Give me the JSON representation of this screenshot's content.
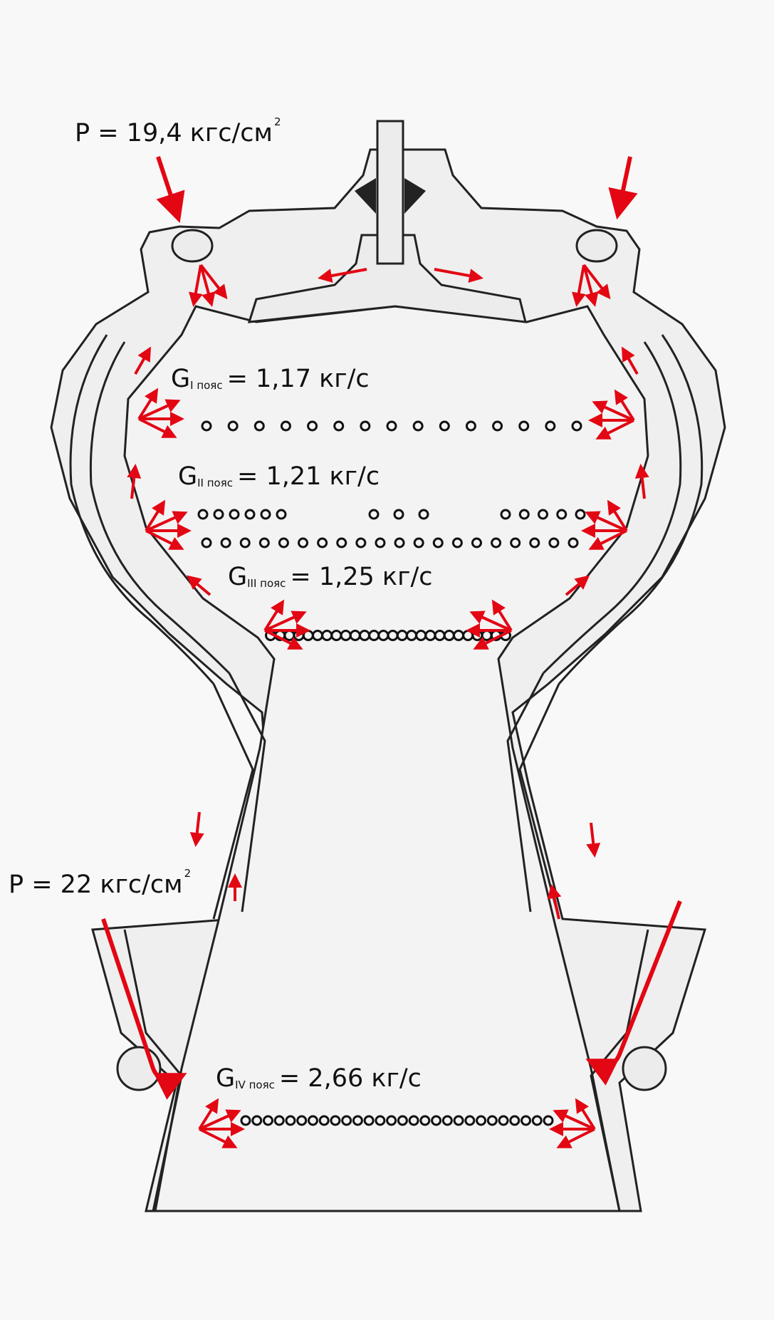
{
  "diagram": {
    "colors": {
      "arrow": "#e30613",
      "line": "#222222",
      "wall": "#f1f1f1",
      "background": "#f8f8f8"
    },
    "labels": {
      "pressure_top": {
        "text": "P = 19,4 кгс/см",
        "superscript": "2"
      },
      "pressure_bottom": {
        "text": "P = 22 кгс/см",
        "superscript": "2"
      },
      "belt_1": {
        "letter": "G",
        "sub": "I пояс",
        "value": "= 1,17 кг/с"
      },
      "belt_2": {
        "letter": "G",
        "sub": "II пояс",
        "value": "= 1,21 кг/с"
      },
      "belt_3": {
        "letter": "G",
        "sub": "III пояс",
        "value": "= 1,25 кг/с"
      },
      "belt_4": {
        "letter": "G",
        "sub": "IV пояс",
        "value": "= 2,66 кг/с"
      }
    }
  }
}
